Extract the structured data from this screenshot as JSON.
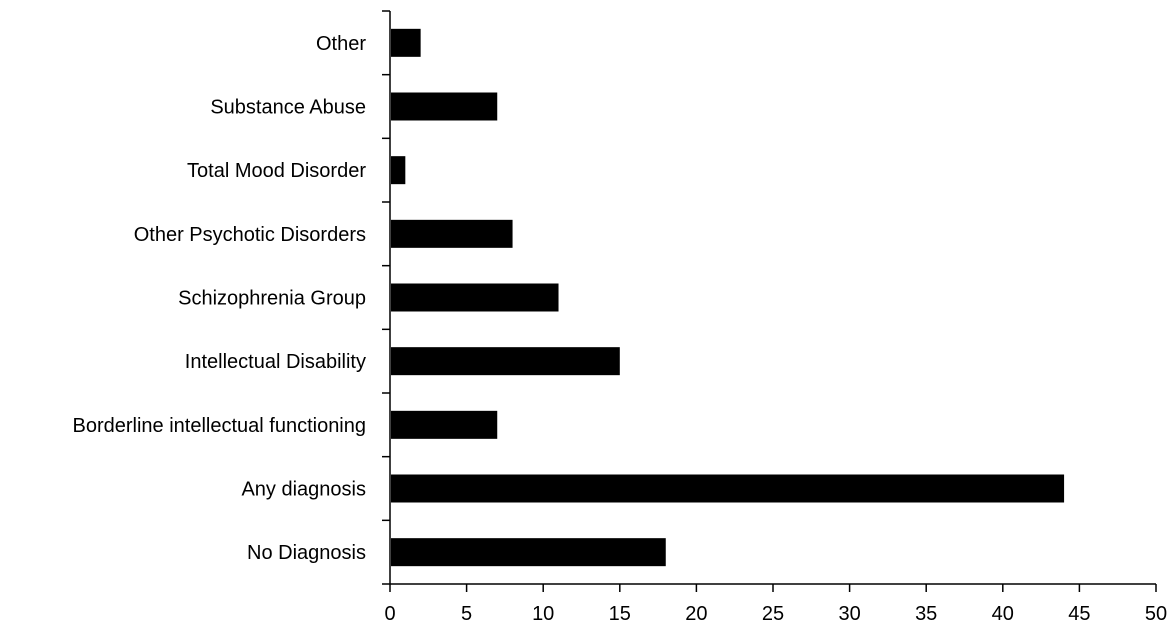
{
  "chart_data": {
    "type": "bar",
    "orientation": "horizontal",
    "categories": [
      "No Diagnosis",
      "Any diagnosis",
      "Borderline intellectual functioning",
      "Intellectual Disability",
      "Schizophrenia Group",
      "Other Psychotic Disorders",
      "Total Mood Disorder",
      "Substance Abuse",
      "Other"
    ],
    "values": [
      18,
      44,
      7,
      15,
      11,
      8,
      1,
      7,
      2
    ],
    "xlim": [
      0,
      50
    ],
    "xticks": [
      "0",
      "5",
      "10",
      "15",
      "20",
      "25",
      "30",
      "35",
      "40",
      "45",
      "50"
    ],
    "title": "",
    "xlabel": "",
    "ylabel": "",
    "grid": false,
    "legend": "none",
    "bar_color": "#000000"
  }
}
